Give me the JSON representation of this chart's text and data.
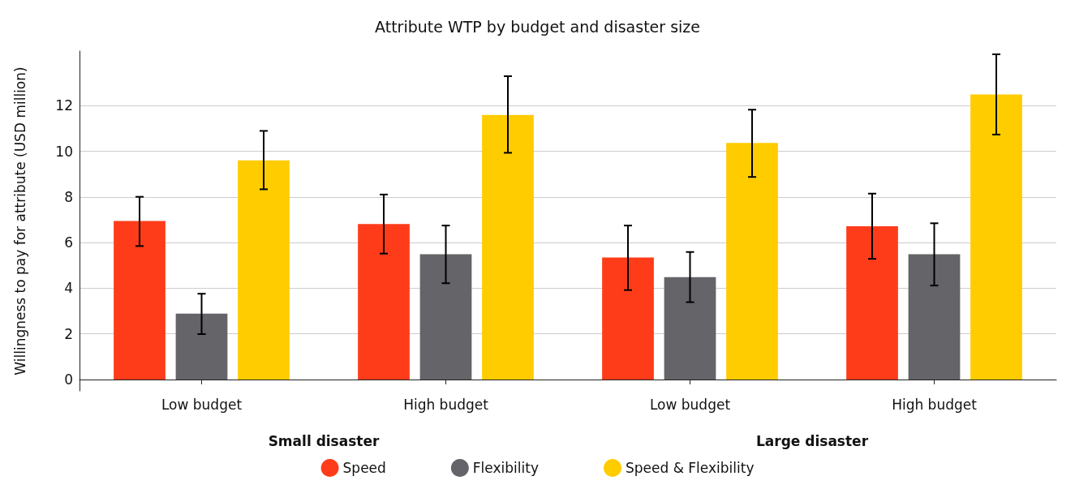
{
  "chart_data": {
    "type": "bar",
    "title": "Attribute WTP by budget and disaster size",
    "ylabel": "Willingness to pay for attribute (USD million)",
    "categories": [
      "Low budget",
      "High budget",
      "Low budget",
      "High budget"
    ],
    "annotations": [
      "Small disaster",
      "Large disaster"
    ],
    "series": [
      {
        "name": "Speed",
        "color": "#ff3c1a",
        "values": [
          6.95,
          6.82,
          5.35,
          6.72
        ],
        "errors": [
          [
            5.85,
            8.01
          ],
          [
            5.52,
            8.11
          ],
          [
            3.92,
            6.75
          ],
          [
            5.29,
            8.15
          ]
        ]
      },
      {
        "name": "Flexibility",
        "color": "#646469",
        "values": [
          2.89,
          5.49,
          4.49,
          5.49
        ],
        "errors": [
          [
            1.99,
            3.76
          ],
          [
            4.22,
            6.75
          ],
          [
            3.39,
            5.59
          ],
          [
            4.12,
            6.85
          ]
        ]
      },
      {
        "name": "Speed & Flexibility",
        "color": "#ffcc00",
        "values": [
          9.61,
          11.6,
          10.37,
          12.5
        ],
        "errors": [
          [
            8.34,
            10.9
          ],
          [
            9.94,
            13.3
          ],
          [
            8.88,
            11.83
          ],
          [
            10.74,
            14.26
          ]
        ]
      }
    ],
    "ylim": [
      -0.5,
      14.4
    ],
    "yticks": [
      0,
      2,
      4,
      6,
      8,
      10,
      12
    ],
    "grid": "y",
    "legend": "bottom"
  }
}
